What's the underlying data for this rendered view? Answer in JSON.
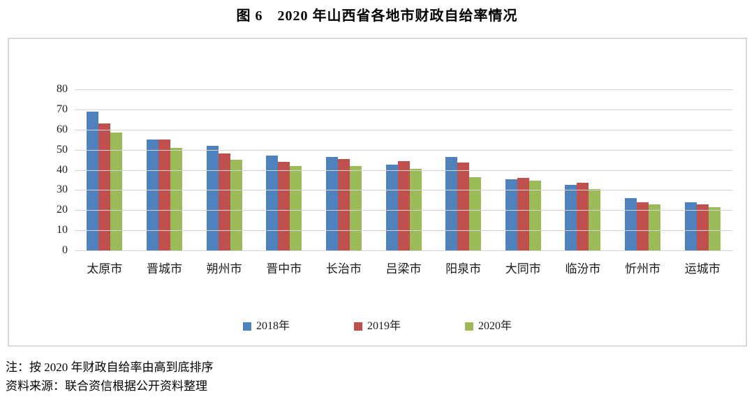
{
  "title": "图 6　2020 年山西省各地市财政自给率情况",
  "notes": {
    "sort_order": "注：按 2020 年财政自给率由高到底排序",
    "source": "资料来源：联合资信根据公开资料整理"
  },
  "colors": {
    "series_2018": "#4F81BD",
    "series_2019": "#C0504D",
    "series_2020": "#9BBB59",
    "gridline": "#d3d3d3",
    "frame_border": "#d9d9d9"
  },
  "chart_data": {
    "type": "bar",
    "title": "图 6　2020 年山西省各地市财政自给率情况",
    "categories": [
      "太原市",
      "晋城市",
      "朔州市",
      "晋中市",
      "长治市",
      "吕梁市",
      "阳泉市",
      "大同市",
      "临汾市",
      "忻州市",
      "运城市"
    ],
    "series": [
      {
        "name": "2018年",
        "color": "#4F81BD",
        "values": [
          69,
          55,
          52,
          47,
          46.5,
          42.5,
          46.5,
          35.5,
          32.5,
          26,
          24
        ]
      },
      {
        "name": "2019年",
        "color": "#C0504D",
        "values": [
          63,
          55,
          48,
          44,
          45.5,
          44.5,
          43.5,
          36,
          33.5,
          24,
          23
        ]
      },
      {
        "name": "2020年",
        "color": "#9BBB59",
        "values": [
          58.5,
          51,
          45,
          42,
          42,
          40.5,
          36.5,
          34.5,
          30.5,
          23,
          21.5
        ]
      }
    ],
    "xlabel": "",
    "ylabel": "",
    "ylim": [
      0,
      80
    ],
    "ytick_step": 10,
    "grid": true,
    "legend_position": "bottom"
  }
}
